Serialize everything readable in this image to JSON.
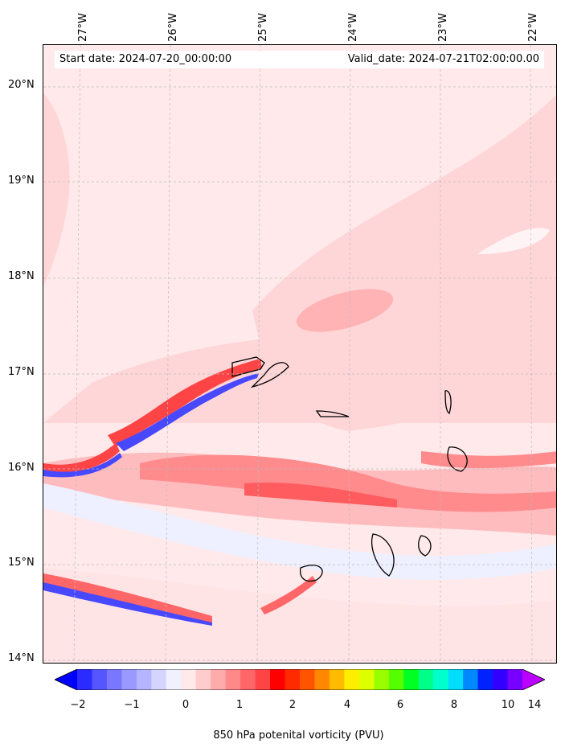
{
  "header": {
    "start_date": "Start date: 2024-07-20_00:00:00",
    "valid_date": "Valid_date: 2024-07-21T02:00:00.00"
  },
  "axes": {
    "longitude_labels": [
      "27°W",
      "26°W",
      "25°W",
      "24°W",
      "23°W",
      "22°W"
    ],
    "latitude_labels": [
      "20°N",
      "19°N",
      "18°N",
      "17°N",
      "16°N",
      "15°N",
      "14°N"
    ]
  },
  "colorbar": {
    "label": "850 hPa potenital vorticity (PVU)",
    "tick_labels": [
      "−2",
      "−1",
      "0",
      "1",
      "2",
      "4",
      "6",
      "8",
      "10",
      "14"
    ],
    "colors": [
      "#0000ff",
      "#2b2bff",
      "#5656ff",
      "#7777ff",
      "#9999ff",
      "#b4b4ff",
      "#d4d4ff",
      "#f0f0ff",
      "#ffe9ea",
      "#ffcccd",
      "#ffaaab",
      "#ff8889",
      "#ff6668",
      "#ff4446",
      "#ff0000",
      "#ff2a00",
      "#ff5500",
      "#ff8800",
      "#ffbb00",
      "#ffee00",
      "#ddff00",
      "#99ff00",
      "#55ff00",
      "#00ff22",
      "#00ff88",
      "#00ffcc",
      "#00ddff",
      "#0088ff",
      "#0022ff",
      "#3300ff",
      "#7700ff",
      "#bb00ff"
    ],
    "extend": "both"
  },
  "map": {
    "background_color": "#ffe9ea",
    "grid": true
  }
}
